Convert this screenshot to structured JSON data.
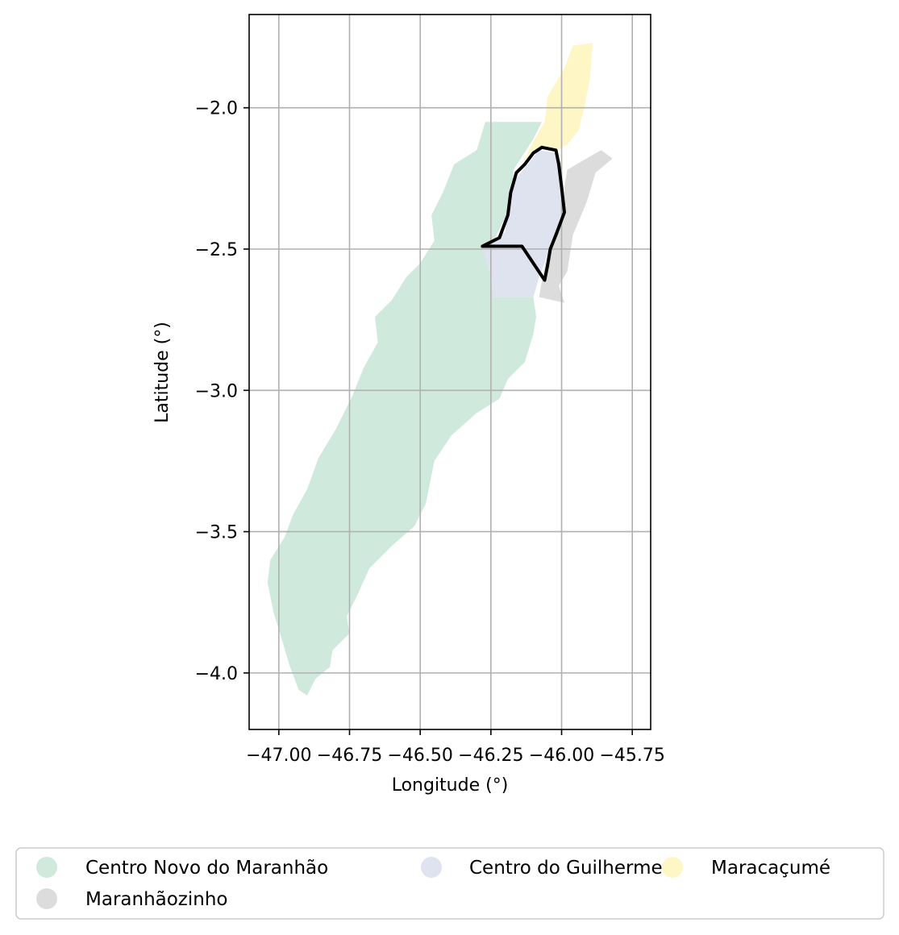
{
  "chart_data": {
    "type": "map",
    "xlabel": "Longitude (°)",
    "ylabel": "Latitude (°)",
    "xlim": [
      -47.105,
      -45.685
    ],
    "ylim": [
      -4.2,
      -1.67
    ],
    "xticks": [
      -47.0,
      -46.75,
      -46.5,
      -46.25,
      -46.0,
      -45.75
    ],
    "xtick_labels": [
      "−47.00",
      "−46.75",
      "−46.50",
      "−46.25",
      "−46.00",
      "−45.75"
    ],
    "yticks": [
      -2.0,
      -2.5,
      -3.0,
      -3.5,
      -4.0
    ],
    "ytick_labels": [
      "−2.0",
      "−2.5",
      "−3.0",
      "−3.5",
      "−4.0"
    ],
    "grid": true,
    "legend_position": "bottom",
    "regions": [
      {
        "name": "Centro Novo do Maranhão",
        "color": "#cfeadd",
        "polygon": [
          [
            -46.27,
            -2.05
          ],
          [
            -46.07,
            -2.05
          ],
          [
            -46.1,
            -2.11
          ],
          [
            -46.17,
            -2.22
          ],
          [
            -46.18,
            -2.35
          ],
          [
            -46.25,
            -2.49
          ],
          [
            -46.25,
            -2.6
          ],
          [
            -46.24,
            -2.67
          ],
          [
            -46.1,
            -2.67
          ],
          [
            -46.09,
            -2.74
          ],
          [
            -46.1,
            -2.8
          ],
          [
            -46.13,
            -2.9
          ],
          [
            -46.19,
            -2.96
          ],
          [
            -46.22,
            -3.03
          ],
          [
            -46.3,
            -3.08
          ],
          [
            -46.39,
            -3.16
          ],
          [
            -46.45,
            -3.25
          ],
          [
            -46.48,
            -3.4
          ],
          [
            -46.52,
            -3.48
          ],
          [
            -46.6,
            -3.55
          ],
          [
            -46.68,
            -3.63
          ],
          [
            -46.72,
            -3.72
          ],
          [
            -46.76,
            -3.8
          ],
          [
            -46.75,
            -3.86
          ],
          [
            -46.81,
            -3.92
          ],
          [
            -46.82,
            -3.98
          ],
          [
            -46.87,
            -4.02
          ],
          [
            -46.9,
            -4.08
          ],
          [
            -46.93,
            -4.06
          ],
          [
            -46.96,
            -3.98
          ],
          [
            -46.99,
            -3.88
          ],
          [
            -47.02,
            -3.78
          ],
          [
            -47.04,
            -3.68
          ],
          [
            -47.03,
            -3.6
          ],
          [
            -46.98,
            -3.52
          ],
          [
            -46.95,
            -3.44
          ],
          [
            -46.9,
            -3.35
          ],
          [
            -46.86,
            -3.24
          ],
          [
            -46.8,
            -3.14
          ],
          [
            -46.74,
            -3.02
          ],
          [
            -46.7,
            -2.92
          ],
          [
            -46.65,
            -2.83
          ],
          [
            -46.66,
            -2.74
          ],
          [
            -46.6,
            -2.68
          ],
          [
            -46.55,
            -2.6
          ],
          [
            -46.5,
            -2.55
          ],
          [
            -46.45,
            -2.47
          ],
          [
            -46.46,
            -2.38
          ],
          [
            -46.42,
            -2.3
          ],
          [
            -46.38,
            -2.2
          ],
          [
            -46.3,
            -2.15
          ]
        ]
      },
      {
        "name": "Centro do Guilherme",
        "color": "#dfe3f0",
        "polygon": [
          [
            -46.08,
            -2.15
          ],
          [
            -46.02,
            -2.16
          ],
          [
            -46.0,
            -2.2
          ],
          [
            -46.0,
            -2.3
          ],
          [
            -45.99,
            -2.37
          ],
          [
            -46.03,
            -2.45
          ],
          [
            -46.06,
            -2.55
          ],
          [
            -46.08,
            -2.6
          ],
          [
            -46.1,
            -2.67
          ],
          [
            -46.24,
            -2.67
          ],
          [
            -46.25,
            -2.6
          ],
          [
            -46.28,
            -2.49
          ],
          [
            -46.2,
            -2.44
          ],
          [
            -46.19,
            -2.35
          ],
          [
            -46.16,
            -2.25
          ]
        ]
      },
      {
        "name": "Maracaçumé",
        "color": "#fff6c6",
        "polygon": [
          [
            -45.96,
            -1.78
          ],
          [
            -45.89,
            -1.77
          ],
          [
            -45.9,
            -1.9
          ],
          [
            -45.92,
            -2.0
          ],
          [
            -45.94,
            -2.08
          ],
          [
            -45.98,
            -2.13
          ],
          [
            -46.02,
            -2.15
          ],
          [
            -46.08,
            -2.14
          ],
          [
            -46.14,
            -2.2
          ],
          [
            -46.1,
            -2.12
          ],
          [
            -46.06,
            -2.05
          ],
          [
            -46.05,
            -1.96
          ],
          [
            -45.99,
            -1.86
          ]
        ]
      },
      {
        "name": "Maranhãozinho",
        "color": "#dcdcdc",
        "polygon": [
          [
            -45.86,
            -2.15
          ],
          [
            -45.82,
            -2.18
          ],
          [
            -45.88,
            -2.23
          ],
          [
            -45.91,
            -2.33
          ],
          [
            -45.96,
            -2.45
          ],
          [
            -45.98,
            -2.58
          ],
          [
            -46.01,
            -2.63
          ],
          [
            -45.99,
            -2.69
          ],
          [
            -46.08,
            -2.67
          ],
          [
            -46.06,
            -2.56
          ],
          [
            -46.03,
            -2.45
          ],
          [
            -45.99,
            -2.37
          ],
          [
            -45.99,
            -2.28
          ],
          [
            -45.98,
            -2.22
          ],
          [
            -45.93,
            -2.19
          ]
        ]
      }
    ],
    "highlight_outline": {
      "color": "#000000",
      "polygon": [
        [
          -46.07,
          -2.14
        ],
        [
          -46.02,
          -2.15
        ],
        [
          -46.01,
          -2.2
        ],
        [
          -46.0,
          -2.28
        ],
        [
          -45.99,
          -2.37
        ],
        [
          -46.02,
          -2.45
        ],
        [
          -46.04,
          -2.5
        ],
        [
          -46.05,
          -2.56
        ],
        [
          -46.06,
          -2.61
        ],
        [
          -46.14,
          -2.49
        ],
        [
          -46.28,
          -2.49
        ],
        [
          -46.26,
          -2.48
        ],
        [
          -46.22,
          -2.46
        ],
        [
          -46.19,
          -2.38
        ],
        [
          -46.18,
          -2.3
        ],
        [
          -46.16,
          -2.23
        ],
        [
          -46.13,
          -2.2
        ],
        [
          -46.1,
          -2.16
        ]
      ]
    }
  }
}
